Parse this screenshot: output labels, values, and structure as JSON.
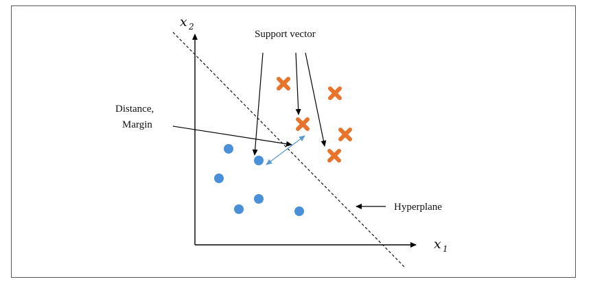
{
  "diagram": {
    "labels": {
      "support_vector": "Support vector",
      "distance_line1": "Distance,",
      "distance_line2": "Margin",
      "hyperplane": "Hyperplane",
      "x1_base": "x",
      "x1_sub": "1",
      "x2_base": "x",
      "x2_sub": "2"
    },
    "colors": {
      "class_circle": "#4a90d9",
      "class_cross": "#e8742c",
      "margin_arrow": "#5b9bd5",
      "axis": "#000000"
    },
    "icons": {
      "circle_point": "filled-circle",
      "cross_point": "x-mark"
    }
  }
}
